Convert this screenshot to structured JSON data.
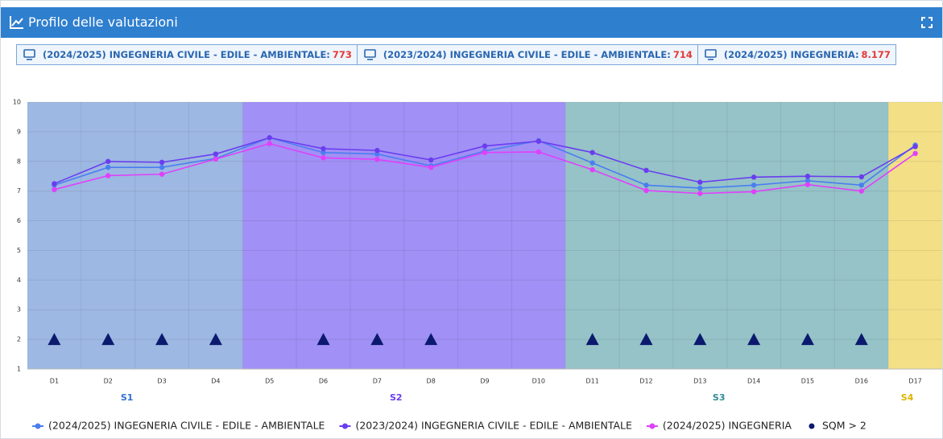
{
  "chart_data": {
    "type": "line",
    "title": "Profilo delle valutazioni",
    "tabs": [
      {
        "label": "(2024/2025) INGEGNERIA CIVILE - EDILE - AMBIENTALE:",
        "count": 773
      },
      {
        "label": "(2023/2024) INGEGNERIA CIVILE - EDILE - AMBIENTALE:",
        "count": 714
      },
      {
        "label": "(2024/2025) INGEGNERIA:",
        "count": {
          "value": 8177,
          "label": "8.177"
        }
      }
    ],
    "categories": [
      "D1",
      "D2",
      "D3",
      "D4",
      "D5",
      "D6",
      "D7",
      "D8",
      "D9",
      "D10",
      "D11",
      "D12",
      "D13",
      "D14",
      "D15",
      "D16",
      "D17"
    ],
    "groups": [
      {
        "label": "S1",
        "size": 4,
        "color": "#9db8e2",
        "label_color": "#2f6fd0"
      },
      {
        "label": "S2",
        "size": 6,
        "color": "#a190f5",
        "label_color": "#6a3df0"
      },
      {
        "label": "S3",
        "size": 6,
        "color": "#95c3c8",
        "label_color": "#2f8a95"
      },
      {
        "label": "S4",
        "size": 1,
        "color": "#f3df86",
        "label_color": "#e0b400"
      }
    ],
    "series": [
      {
        "name": "(2024/2025) INGEGNERIA CIVILE - EDILE - AMBIENTALE",
        "color": "#4a7ef0",
        "marker": "circle",
        "values": [
          7.2,
          7.8,
          7.8,
          8.1,
          8.8,
          8.3,
          8.25,
          7.85,
          8.35,
          8.7,
          7.95,
          7.2,
          7.1,
          7.2,
          7.35,
          7.2,
          8.55
        ]
      },
      {
        "name": "(2023/2024) INGEGNERIA CIVILE - EDILE - AMBIENTALE",
        "color": "#6a3df0",
        "marker": "circle",
        "values": [
          7.25,
          8.0,
          7.97,
          8.25,
          8.8,
          8.43,
          8.37,
          8.05,
          8.52,
          8.68,
          8.3,
          7.7,
          7.3,
          7.47,
          7.5,
          7.48,
          8.5
        ]
      },
      {
        "name": "(2024/2025) INGEGNERIA",
        "color": "#e040fb",
        "marker": "circle",
        "values": [
          7.05,
          7.52,
          7.57,
          8.08,
          8.6,
          8.12,
          8.07,
          7.8,
          8.3,
          8.32,
          7.72,
          7.02,
          6.92,
          6.98,
          7.22,
          7.0,
          8.27
        ]
      },
      {
        "name": "SQM > 2",
        "color": "#0b1a6e",
        "marker": "triangle",
        "values": [
          2,
          2,
          2,
          2,
          null,
          2,
          2,
          2,
          null,
          null,
          2,
          2,
          2,
          2,
          2,
          2,
          null
        ]
      }
    ],
    "ylim": [
      1,
      10
    ],
    "yticks": [
      1,
      2,
      3,
      4,
      5,
      6,
      7,
      8,
      9,
      10
    ],
    "grid": true
  }
}
